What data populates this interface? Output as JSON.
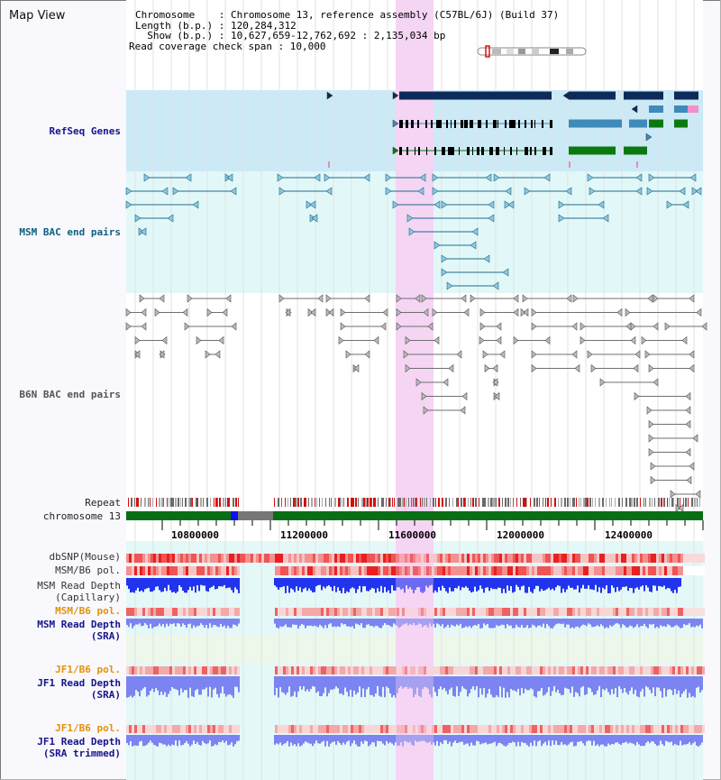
{
  "title": "Map View",
  "info": {
    "chromosome_line": "Chromosome    : Chromosome 13, reference assembly (C57BL/6J) (Build 37)",
    "length_line": "Length (b.p.) : 120,284,312",
    "show_line": "  Show (b.p.) : 10,627,659-12,762,692 : 2,135,034 bp",
    "span_line": "Read coverage check span : 10,000"
  },
  "tracks": {
    "refseq": "RefSeq Genes",
    "msm_bac": "MSM BAC end pairs",
    "b6n_bac": "B6N BAC end pairs",
    "repeat": "Repeat",
    "chromosome": "chromosome 13",
    "dbsnp": "dbSNP(Mouse)",
    "msm_b6_pol": "MSM/B6 pol.",
    "msm_depth_cap_1": "MSM Read Depth",
    "msm_depth_cap_2": "(Capillary)",
    "msm_b6_pol_sra": "MSM/B6 pol.",
    "msm_depth_sra_1": "MSM Read Depth",
    "msm_depth_sra_2": "(SRA)",
    "jf1_b6_pol": "JF1/B6 pol.",
    "jf1_depth_sra_1": "JF1 Read Depth",
    "jf1_depth_sra_2": "(SRA)",
    "jf1_b6_pol_trim": "JF1/B6 pol.",
    "jf1_depth_trim_1": "JF1 Read Depth",
    "jf1_depth_trim_2": "(SRA trimmed)"
  },
  "axis": {
    "ticks": [
      "10800000",
      "11200000",
      "11600000",
      "12000000",
      "12400000"
    ]
  },
  "colors": {
    "refseq_bg": "#cce9f6",
    "msm_bg": "#e2f8f8",
    "highlight": "#f6d4f4",
    "gene_navy": "#0d2b5a",
    "gene_steel": "#3e8ab8",
    "gene_green": "#0a7a10",
    "gene_pink": "#f090c8",
    "msm_bac": "#1d6a8e",
    "b6n_bac": "#6f6f6f",
    "chromosome_green": "#0a6e14",
    "pol_red": "#f24343",
    "depth_blue": "#2233ee",
    "depth_light": "#7b84f0",
    "label_navy": "#14148c",
    "label_teal": "#0f5f7d",
    "label_orange": "#e5910a"
  }
}
